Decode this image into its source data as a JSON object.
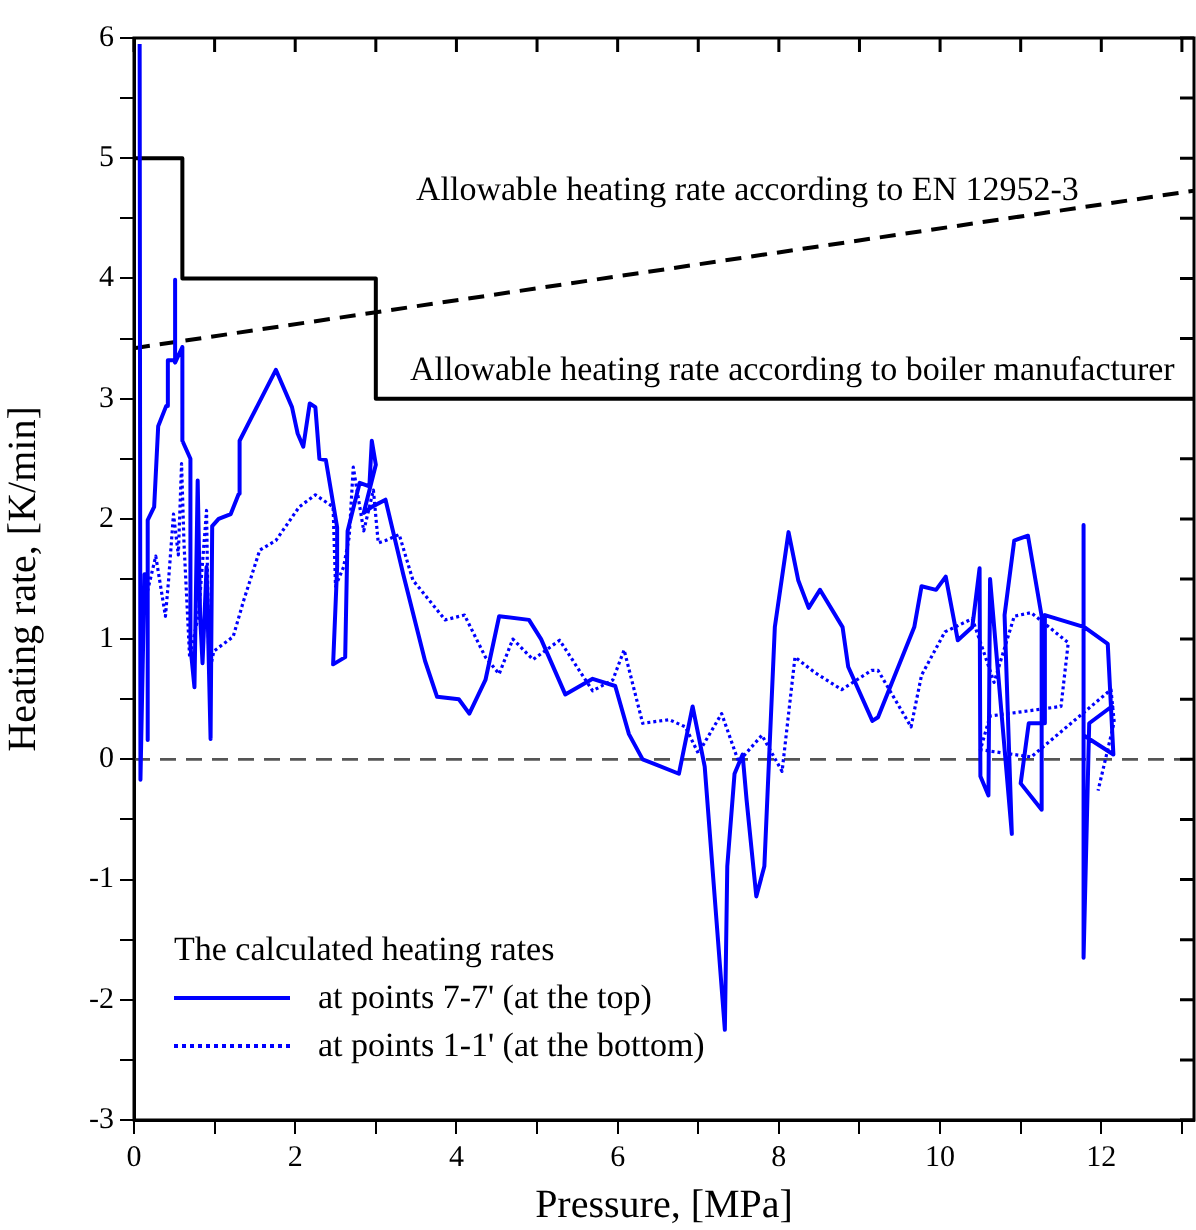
{
  "chart_data": {
    "type": "line",
    "xlabel": "Pressure, [MPa]",
    "ylabel": "Heating rate, [K/min]",
    "legend_title": "The calculated heating rates",
    "legend": "bottom left",
    "grid": false,
    "marker": "none",
    "xlim": [
      0,
      13.15
    ],
    "ylim": [
      -3,
      6
    ],
    "xticks": [
      0,
      {
        "value": 1,
        "label": null
      },
      2,
      {
        "value": 3,
        "label": null
      },
      4,
      {
        "value": 5,
        "label": null
      },
      6,
      {
        "value": 7,
        "label": null
      },
      8,
      {
        "value": 9,
        "label": null
      },
      10,
      {
        "value": 11,
        "label": null
      },
      12,
      {
        "value": 13,
        "label": null
      }
    ],
    "yticks": [
      -3,
      {
        "value": -2.5,
        "label": null
      },
      -2,
      {
        "value": -1.5,
        "label": null
      },
      -1,
      {
        "value": -0.5,
        "label": null
      },
      0,
      {
        "value": 0.5,
        "label": null
      },
      1,
      {
        "value": 1.5,
        "label": null
      },
      2,
      {
        "value": 2.5,
        "label": null
      },
      3,
      {
        "value": 3.5,
        "label": null
      },
      4,
      {
        "value": 4.5,
        "label": null
      },
      5,
      {
        "value": 5.5,
        "label": null
      },
      6
    ],
    "series": [
      {
        "name": "at points 7-7' (at the top)",
        "color": "#0000ff",
        "line_style": "solid",
        "x": [
          0.07,
          0.08,
          0.13,
          0.17,
          0.17,
          0.17,
          0.25,
          0.3,
          0.4,
          0.42,
          0.5,
          0.5,
          0.52,
          0.6,
          0.6,
          0.7,
          0.7,
          0.75,
          0.79,
          0.82,
          0.85,
          0.9,
          0.95,
          0.97,
          1.05,
          1.2,
          1.3,
          1.31,
          1.76,
          1.96,
          2.03,
          2.1,
          2.18,
          2.25,
          2.3,
          2.38,
          2.52,
          2.52,
          2.47,
          2.62,
          2.65,
          2.8,
          2.92,
          2.95,
          3.0,
          2.85,
          2.95,
          3.12,
          3.34,
          3.61,
          3.76,
          4.03,
          4.16,
          4.36,
          4.53,
          4.9,
          5.05,
          5.35,
          5.69,
          5.97,
          6.14,
          6.31,
          6.5,
          6.76,
          6.93,
          7.08,
          7.33,
          7.36,
          7.45,
          7.55,
          7.6,
          7.72,
          7.82,
          7.95,
          8.12,
          8.24,
          8.37,
          8.51,
          8.79,
          8.86,
          9.16,
          9.23,
          9.68,
          9.77,
          9.95,
          10.07,
          10.22,
          10.4,
          10.49,
          10.5,
          10.6,
          10.62,
          10.89,
          10.8,
          10.92,
          11.09,
          11.26,
          11.26,
          11.0,
          11.1,
          11.3,
          11.3,
          11.79,
          12.08,
          12.15,
          11.78,
          11.78,
          11.78,
          11.85,
          12.15
        ],
        "values": [
          5.95,
          -0.17,
          1.54,
          1.54,
          0.16,
          1.99,
          2.1,
          2.77,
          2.94,
          3.32,
          3.32,
          3.99,
          3.3,
          3.43,
          2.65,
          2.5,
          0.94,
          0.6,
          2.32,
          1.2,
          0.8,
          1.6,
          0.17,
          1.94,
          2.0,
          2.04,
          2.21,
          2.65,
          3.24,
          2.93,
          2.71,
          2.6,
          2.96,
          2.93,
          2.5,
          2.49,
          1.93,
          1.6,
          0.79,
          0.85,
          1.9,
          2.3,
          2.27,
          2.65,
          2.45,
          2.05,
          2.1,
          2.16,
          1.54,
          0.82,
          0.52,
          0.5,
          0.38,
          0.66,
          1.19,
          1.16,
          1.0,
          0.54,
          0.67,
          0.61,
          0.21,
          0.0,
          -0.05,
          -0.12,
          0.44,
          -0.06,
          -2.25,
          -0.89,
          -0.12,
          0.04,
          -0.34,
          -1.14,
          -0.89,
          1.1,
          1.89,
          1.49,
          1.26,
          1.41,
          1.1,
          0.77,
          0.32,
          0.35,
          1.1,
          1.44,
          1.41,
          1.52,
          0.99,
          1.1,
          1.59,
          -0.14,
          -0.3,
          1.5,
          -0.62,
          1.2,
          1.82,
          1.86,
          1.19,
          -0.42,
          -0.2,
          0.3,
          0.3,
          1.2,
          1.1,
          0.96,
          0.04,
          0.2,
          1.95,
          -1.65,
          0.3,
          0.45
        ]
      },
      {
        "name": "at points 1-1' (at the bottom)",
        "color": "#0000ff",
        "line_style": "dotted",
        "x": [
          0.15,
          0.27,
          0.39,
          0.43,
          0.49,
          0.55,
          0.59,
          0.62,
          0.69,
          0.8,
          0.9,
          0.93,
          0.99,
          1.23,
          1.36,
          1.56,
          1.76,
          2.05,
          2.25,
          2.47,
          2.5,
          2.6,
          2.67,
          2.72,
          2.85,
          2.97,
          3.03,
          3.12,
          3.29,
          3.46,
          3.86,
          4.1,
          4.36,
          4.53,
          4.7,
          4.95,
          5.28,
          5.69,
          5.94,
          6.08,
          6.31,
          6.64,
          6.84,
          7.0,
          7.29,
          7.5,
          7.79,
          8.04,
          8.2,
          8.45,
          8.78,
          9.15,
          9.23,
          9.64,
          9.77,
          10.06,
          10.4,
          10.67,
          10.92,
          11.13,
          11.59,
          11.5,
          10.62,
          10.5,
          11.13,
          12.12,
          12.16,
          11.96
        ],
        "values": [
          1.35,
          1.69,
          1.19,
          1.5,
          2.04,
          1.7,
          2.46,
          1.8,
          0.85,
          1.2,
          2.07,
          0.7,
          0.9,
          1.02,
          1.32,
          1.74,
          1.82,
          2.1,
          2.2,
          2.1,
          1.44,
          1.6,
          1.85,
          2.43,
          1.9,
          2.24,
          1.8,
          1.82,
          1.87,
          1.49,
          1.16,
          1.2,
          0.85,
          0.71,
          1.0,
          0.83,
          0.99,
          0.57,
          0.66,
          0.91,
          0.3,
          0.33,
          0.27,
          0.05,
          0.38,
          -0.02,
          0.2,
          -0.1,
          0.85,
          0.72,
          0.58,
          0.74,
          0.74,
          0.27,
          0.7,
          1.06,
          1.17,
          0.64,
          1.19,
          1.22,
          0.97,
          0.44,
          0.36,
          0.08,
          0.02,
          0.58,
          0.31,
          -0.26
        ]
      },
      {
        "color": "#000000",
        "line_style": "solid",
        "x": [
          0,
          0.6,
          0.6,
          3,
          3,
          13.15
        ],
        "values": [
          5,
          5,
          4,
          4,
          3,
          3
        ]
      },
      {
        "color": "#000000",
        "line_style": "dashed",
        "x": [
          0,
          13.15
        ],
        "values": [
          3.42,
          4.73
        ]
      }
    ],
    "ref_lines": [
      {
        "axis": "y",
        "value": 0,
        "color": "#555555",
        "line_style": "dashed"
      }
    ],
    "annotations": [
      "Allowable heating rate according to EN 12952-3",
      "Allowable heating rate according to boiler manufacturer"
    ]
  }
}
